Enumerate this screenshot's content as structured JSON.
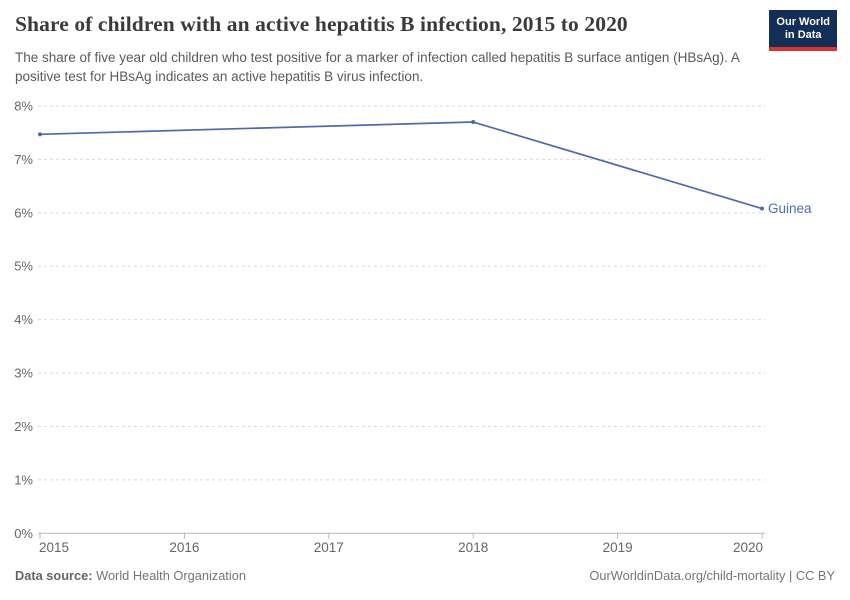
{
  "header": {
    "title": "Share of children with an active hepatitis B infection, 2015 to 2020",
    "subtitle": "The share of five year old children who test positive for a marker of infection called hepatitis B surface antigen (HBsAg). A positive test for HBsAg indicates an active hepatitis B virus infection.",
    "logo": {
      "line1": "Our World",
      "line2": "in Data",
      "bg_color": "#132f57",
      "bar_color": "#d8352e"
    }
  },
  "chart_data": {
    "type": "line",
    "title": "Share of children with an active hepatitis B infection, 2015 to 2020",
    "xlabel": "",
    "ylabel": "",
    "xlim": [
      2015,
      2020
    ],
    "ylim": [
      0,
      8
    ],
    "grid": "horizontal-dashed",
    "legend_position": "end-of-line-label",
    "x_ticks": [
      {
        "v": 2015,
        "label": "2015"
      },
      {
        "v": 2016,
        "label": "2016"
      },
      {
        "v": 2017,
        "label": "2017"
      },
      {
        "v": 2018,
        "label": "2018"
      },
      {
        "v": 2019,
        "label": "2019"
      },
      {
        "v": 2020,
        "label": "2020"
      }
    ],
    "y_ticks": [
      {
        "v": 0,
        "label": "0%"
      },
      {
        "v": 1,
        "label": "1%"
      },
      {
        "v": 2,
        "label": "2%"
      },
      {
        "v": 3,
        "label": "3%"
      },
      {
        "v": 4,
        "label": "4%"
      },
      {
        "v": 5,
        "label": "5%"
      },
      {
        "v": 6,
        "label": "6%"
      },
      {
        "v": 7,
        "label": "7%"
      },
      {
        "v": 8,
        "label": "8%"
      }
    ],
    "series": [
      {
        "name": "Guinea",
        "color": "#4a6cae",
        "points": [
          {
            "x": 2015,
            "y": 7.47
          },
          {
            "x": 2018,
            "y": 7.7
          },
          {
            "x": 2020,
            "y": 6.08
          }
        ]
      }
    ],
    "colors": {
      "gridline": "#d9d9d9",
      "axis": "#b8b8b8",
      "tick_label": "#666666"
    }
  },
  "footer": {
    "datasource_label": "Data source:",
    "datasource_value": "World Health Organization",
    "right_text": "OurWorldinData.org/child-mortality | CC BY"
  }
}
